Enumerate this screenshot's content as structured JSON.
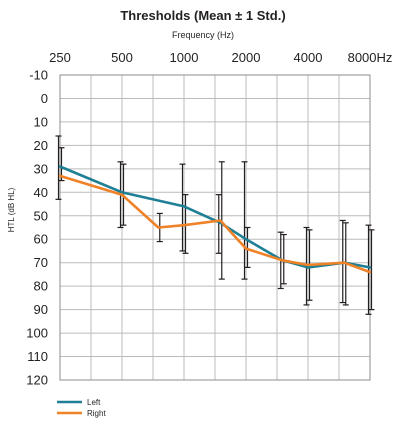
{
  "chart_data": {
    "type": "line",
    "title": "Thresholds (Mean ± 1 Std.)",
    "subtitle": "Frequency (Hz)",
    "ylabel": "HTL (dB HL)",
    "x_tick_labels": [
      "250",
      "500",
      "1000",
      "2000",
      "4000",
      "8000Hz"
    ],
    "y_tick_labels": [
      "-10",
      "0",
      "10",
      "20",
      "30",
      "40",
      "50",
      "60",
      "70",
      "80",
      "90",
      "100",
      "110",
      "120"
    ],
    "ylim": [
      -10,
      120
    ],
    "y_inverted": true,
    "x_scale": "log",
    "grid": true,
    "legend_position": "bottom-left",
    "series": [
      {
        "name": "Left",
        "color": "#1f7f94",
        "x": [
          250,
          500,
          1000,
          1500,
          2000,
          3000,
          4000,
          6000,
          8000
        ],
        "y": [
          29,
          40,
          46,
          53,
          60,
          69,
          72,
          70,
          72
        ],
        "err_low": [
          16,
          27,
          28,
          41,
          27,
          57,
          55,
          52,
          54
        ],
        "err_high": [
          43,
          55,
          65,
          66,
          77,
          81,
          88,
          87,
          92
        ]
      },
      {
        "name": "Right",
        "color": "#ef8127",
        "x": [
          250,
          500,
          750,
          1000,
          1500,
          2000,
          3000,
          4000,
          6000,
          8000
        ],
        "y": [
          33,
          41,
          55,
          54,
          52,
          64,
          69,
          71,
          70,
          74
        ],
        "err_low": [
          21,
          28,
          49,
          41,
          27,
          55,
          58,
          56,
          53,
          56
        ],
        "err_high": [
          35,
          54,
          61,
          66,
          77,
          72,
          79,
          86,
          88,
          90
        ]
      }
    ]
  }
}
